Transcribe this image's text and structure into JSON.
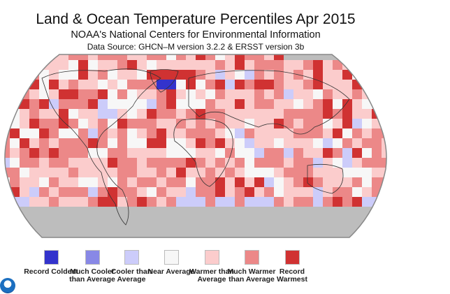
{
  "title": "Land & Ocean Temperature Percentiles Apr 2015",
  "subtitle": "NOAA's National Centers for Environmental Information",
  "source": "Data Source: GHCN–M version 3.2.2 & ERSST version 3b",
  "logo_text": "NOAA",
  "legend": [
    {
      "label": "Record Coldest",
      "color": "#3333cc"
    },
    {
      "label": "Much Cooler than Average",
      "color": "#8888e6"
    },
    {
      "label": "Cooler than Average",
      "color": "#ccccfa"
    },
    {
      "label": "Near Average",
      "color": "#f7f7f7"
    },
    {
      "label": "Warmer than Average",
      "color": "#fbcccc"
    },
    {
      "label": "Much Warmer than Average",
      "color": "#ec8888"
    },
    {
      "label": "Record Warmest",
      "color": "#d03232"
    }
  ],
  "no_data_color": "#bdbdbd"
}
